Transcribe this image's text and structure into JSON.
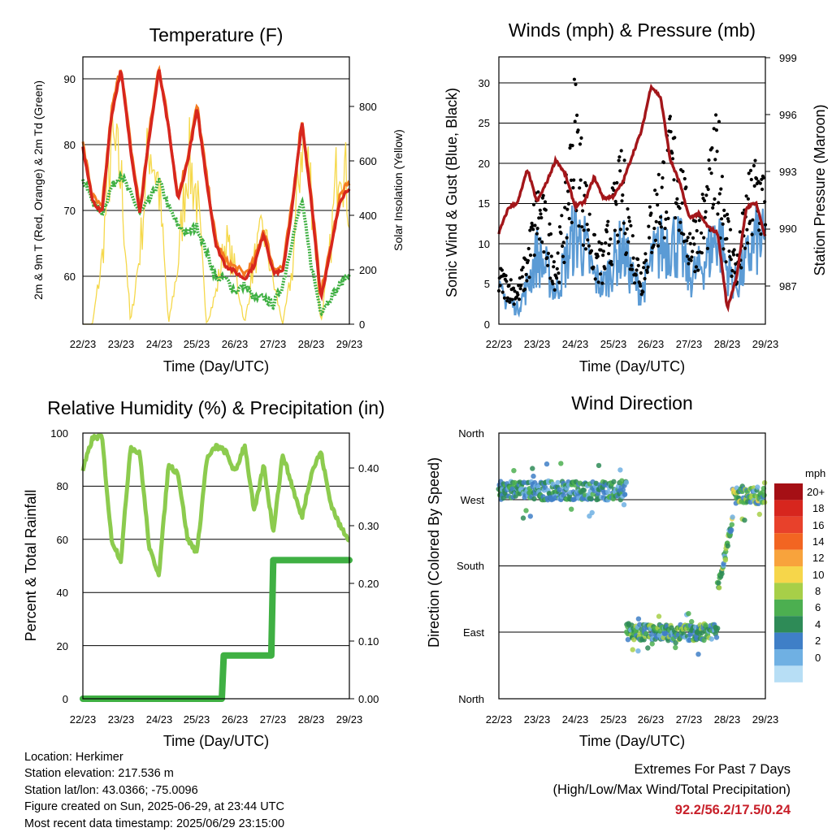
{
  "days": [
    "22/23",
    "23/23",
    "24/23",
    "25/23",
    "26/23",
    "27/23",
    "28/23",
    "29/23"
  ],
  "time_label": "Time (Day/UTC)",
  "colors": {
    "temp2m": "#d7261e",
    "temp9m": "#f47c22",
    "dew": "#3fb043",
    "solar": "#f5d84a",
    "gust": "#000000",
    "wind": "#5b9bd5",
    "pressure": "#a3161a",
    "rh": "#8ccb4e",
    "precip": "#3fb043",
    "extremes": "#c8202a"
  },
  "panels": {
    "temperature": {
      "title": "Temperature (F)",
      "ylabel_left": "2m & 9m T (Red, Orange) & 2m Td (Green)",
      "ylabel_right": "Solar Insolation (Yellow)",
      "left_ticks": [
        "60",
        "70",
        "80",
        "90"
      ],
      "right_ticks": [
        "0",
        "200",
        "400",
        "600",
        "800"
      ]
    },
    "winds": {
      "title": "Winds (mph) & Pressure (mb)",
      "ylabel_left": "Sonic Wind & Gust (Blue, Black)",
      "ylabel_right": "Station Pressure (Maroon)",
      "left_ticks": [
        "0",
        "5",
        "10",
        "15",
        "20",
        "25",
        "30"
      ],
      "right_ticks": [
        "987",
        "990",
        "993",
        "996",
        "999"
      ]
    },
    "humidity": {
      "title": "Relative Humidity (%) & Precipitation (in)",
      "ylabel_left": "Percent & Total Rainfall",
      "left_ticks": [
        "0",
        "20",
        "40",
        "60",
        "80",
        "100"
      ],
      "right_ticks": [
        "0.00",
        "0.10",
        "0.20",
        "0.30",
        "0.40"
      ]
    },
    "direction": {
      "title": "Wind Direction",
      "ylabel_left": "Direction (Colored By Speed)",
      "dir_ticks": [
        "North",
        "East",
        "South",
        "West",
        "North"
      ],
      "legend_title": "mph",
      "legend_labels": [
        "20+",
        "18",
        "16",
        "14",
        "12",
        "10",
        "8",
        "6",
        "4",
        "2",
        "0"
      ],
      "legend_colors": [
        "#a50f15",
        "#d7261e",
        "#e8412b",
        "#f26522",
        "#f8a33c",
        "#f6d64a",
        "#a7cf48",
        "#4caf50",
        "#2e8b57",
        "#3f7fc7",
        "#6fb0e3",
        "#b7def5"
      ]
    }
  },
  "chart_data": [
    {
      "type": "line",
      "title": "Temperature (F)",
      "xlabel": "Time (Day/UTC)",
      "ylabel": "2m & 9m T (Red, Orange) & 2m Td (Green)",
      "y2label": "Solar Insolation (Yellow)",
      "ylim": [
        53,
        94
      ],
      "y2lim": [
        0,
        980
      ],
      "x_days": [
        0,
        0.25,
        0.5,
        0.75,
        1,
        1.25,
        1.5,
        1.75,
        2,
        2.25,
        2.5,
        2.75,
        3,
        3.25,
        3.5,
        3.75,
        4,
        4.25,
        4.5,
        4.75,
        5,
        5.25,
        5.5,
        5.75,
        6,
        6.25,
        6.5,
        6.75,
        7
      ],
      "series": [
        {
          "name": "2m T",
          "values": [
            80,
            72,
            70,
            85,
            92,
            80,
            70,
            82,
            92,
            83,
            72,
            78,
            86,
            75,
            65,
            62,
            61,
            60,
            62,
            67,
            61,
            61,
            71,
            84,
            72,
            57,
            64,
            72,
            74
          ]
        },
        {
          "name": "2m Td",
          "values": [
            75,
            72,
            70,
            74,
            76,
            73,
            70,
            72,
            75,
            71,
            68,
            67,
            68,
            64,
            60,
            60,
            58,
            59,
            57,
            57,
            56,
            59,
            66,
            72,
            62,
            55,
            57,
            59,
            61
          ]
        },
        {
          "name": "Solar Insolation",
          "values": [
            0,
            0,
            300,
            850,
            700,
            0,
            350,
            880,
            650,
            0,
            280,
            800,
            600,
            0,
            150,
            400,
            250,
            0,
            300,
            450,
            200,
            0,
            250,
            900,
            650,
            0,
            350,
            900,
            550
          ]
        }
      ]
    },
    {
      "type": "line",
      "title": "Winds (mph) & Pressure (mb)",
      "xlabel": "Time (Day/UTC)",
      "ylabel": "Sonic Wind & Gust (Blue, Black)",
      "y2label": "Station Pressure (Maroon)",
      "ylim": [
        0,
        33
      ],
      "y2lim": [
        985.5,
        999.3
      ],
      "x_days": [
        0,
        0.25,
        0.5,
        0.75,
        1,
        1.25,
        1.5,
        1.75,
        2,
        2.25,
        2.5,
        2.75,
        3,
        3.25,
        3.5,
        3.75,
        4,
        4.25,
        4.5,
        4.75,
        5,
        5.25,
        5.5,
        5.75,
        6,
        6.25,
        6.5,
        6.75,
        7
      ],
      "series": [
        {
          "name": "Sonic Wind",
          "values": [
            4,
            3,
            2,
            5,
            9,
            7,
            4,
            8,
            12,
            10,
            6,
            5,
            8,
            10,
            6,
            4,
            8,
            10,
            11,
            10,
            6,
            7,
            9,
            12,
            7,
            5,
            8,
            11,
            10
          ]
        },
        {
          "name": "Gust",
          "values": [
            6,
            5,
            4,
            8,
            15,
            12,
            7,
            14,
            26,
            16,
            9,
            8,
            14,
            18,
            10,
            6,
            13,
            17,
            21,
            19,
            11,
            12,
            16,
            22,
            12,
            7,
            14,
            18,
            16
          ]
        },
        {
          "name": "Station Pressure",
          "values": [
            990.2,
            991.5,
            991.8,
            993.5,
            991.8,
            992.8,
            994.0,
            993.2,
            991.6,
            991.8,
            993.1,
            992.0,
            992.1,
            992.8,
            994.2,
            995.5,
            997.8,
            997.2,
            994.0,
            992.8,
            991.0,
            991.2,
            990.5,
            990.2,
            986.3,
            988.0,
            991.5,
            991.8,
            990.0
          ]
        }
      ]
    },
    {
      "type": "line",
      "title": "Relative Humidity (%) & Precipitation (in)",
      "xlabel": "Time (Day/UTC)",
      "ylabel": "Percent & Total Rainfall",
      "ylim": [
        0,
        100
      ],
      "y2lim": [
        0,
        0.46
      ],
      "x_days": [
        0,
        0.25,
        0.5,
        0.75,
        1,
        1.25,
        1.5,
        1.75,
        2,
        2.25,
        2.5,
        2.75,
        3,
        3.25,
        3.5,
        3.75,
        4,
        4.25,
        4.5,
        4.75,
        5,
        5.25,
        5.5,
        5.75,
        6,
        6.25,
        6.5,
        6.75,
        7
      ],
      "series": [
        {
          "name": "Relative Humidity",
          "values": [
            86,
            98,
            99,
            60,
            52,
            95,
            92,
            56,
            47,
            88,
            85,
            60,
            55,
            90,
            95,
            93,
            85,
            96,
            70,
            88,
            63,
            92,
            80,
            68,
            85,
            93,
            74,
            65,
            60
          ]
        },
        {
          "name": "Total Rainfall",
          "step_x": [
            0,
            3.65,
            3.7,
            4.95,
            5.0,
            7
          ],
          "step_y": [
            0.0,
            0.0,
            0.075,
            0.075,
            0.24,
            0.24
          ]
        }
      ]
    },
    {
      "type": "scatter",
      "title": "Wind Direction",
      "xlabel": "Time (Day/UTC)",
      "ylabel": "Direction (Colored By Speed)",
      "ylim": [
        0,
        360
      ],
      "segments": [
        {
          "from": 0.0,
          "to": 3.35,
          "dir": 282,
          "spread": 25,
          "speed": 6
        },
        {
          "from": 3.35,
          "to": 5.75,
          "dir": 90,
          "spread": 22,
          "speed": 7
        },
        {
          "from": 5.75,
          "to": 6.15,
          "dir_start": 150,
          "dir_end": 245,
          "spread": 15,
          "speed": 8
        },
        {
          "from": 6.15,
          "to": 7.0,
          "dir": 275,
          "spread": 22,
          "speed": 8
        }
      ]
    }
  ],
  "info": {
    "location": "Location: Herkimer",
    "elevation": "Station elevation: 217.536 m",
    "latlon": "Station lat/lon: 43.0366; -75.0096",
    "created": "Figure created on Sun, 2025-06-29, at 23:44 UTC",
    "recent": "Most recent data timestamp: 2025/06/29 23:15:00"
  },
  "extremes": {
    "line1": "Extremes For Past 7 Days",
    "line2": "(High/Low/Max Wind/Total Precipitation)",
    "values": "92.2/56.2/17.5/0.24"
  }
}
